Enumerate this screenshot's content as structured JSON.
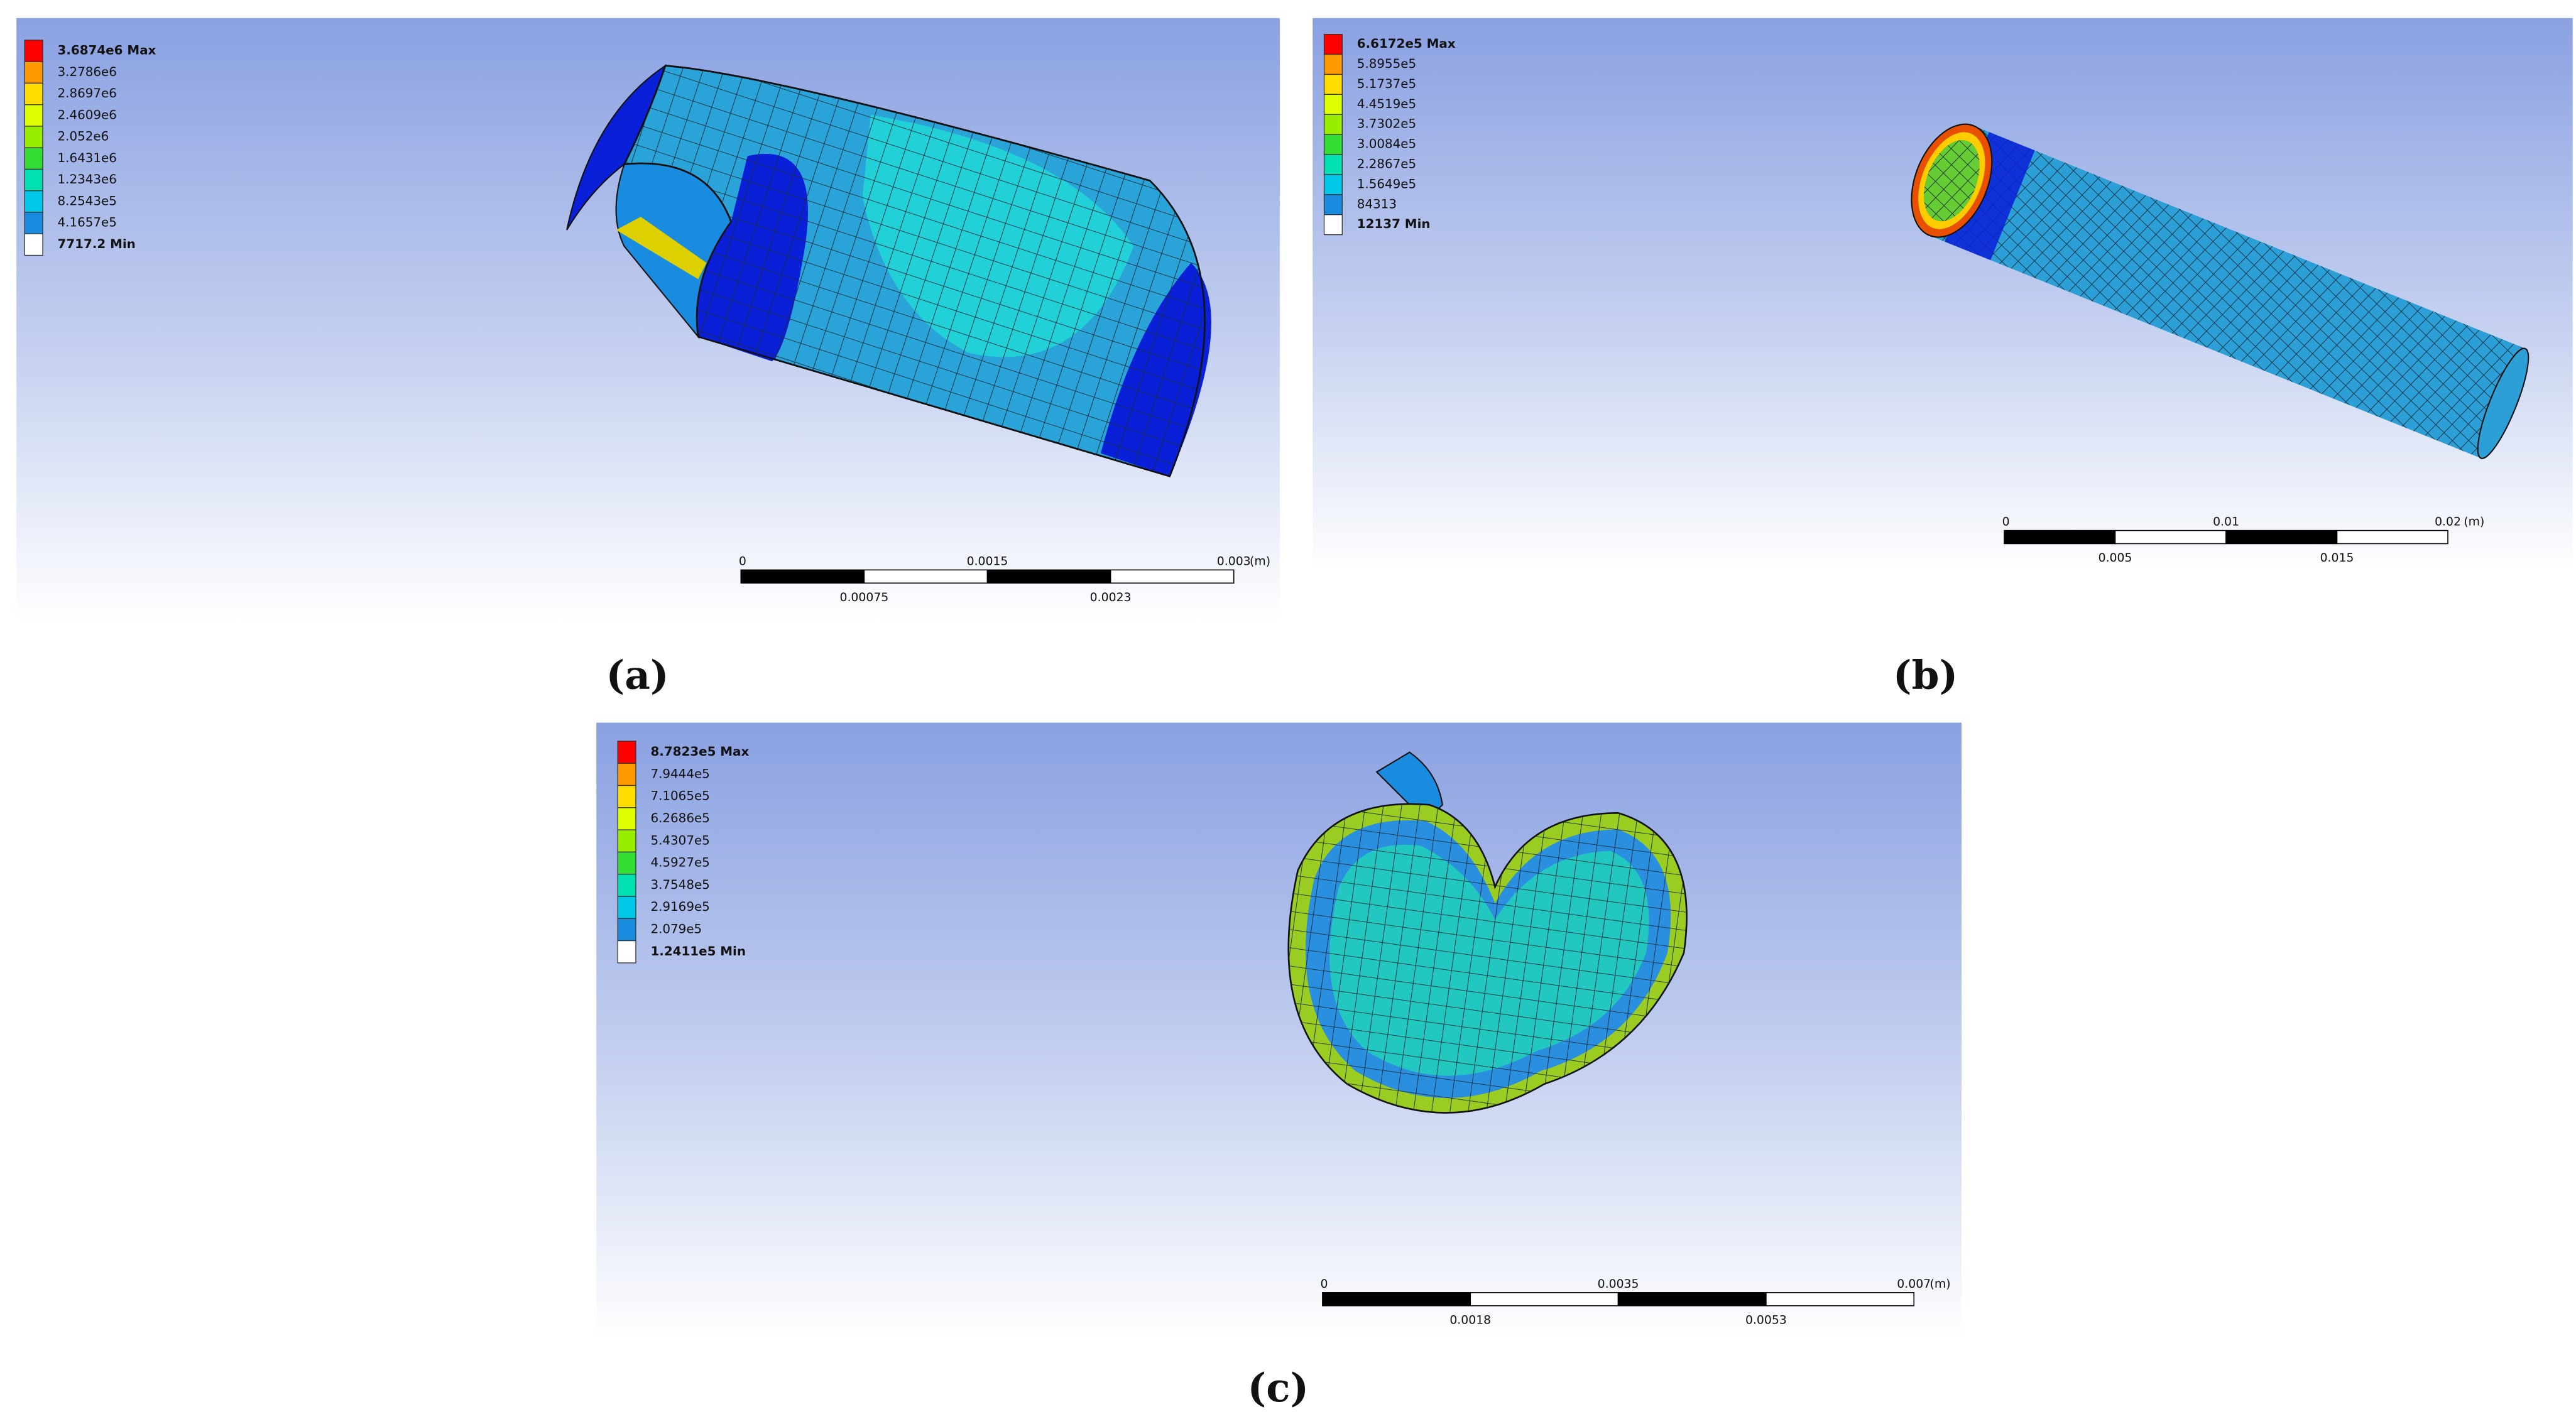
{
  "panels": [
    {
      "label": "(a)",
      "legend": {
        "labels": [
          "3.6874e6 Max",
          "3.2786e6",
          "2.8697e6",
          "2.4609e6",
          "2.052e6",
          "1.6431e6",
          "1.2343e6",
          "8.2543e5",
          "4.1657e5",
          "7717.2 Min"
        ],
        "colors": [
          "#ff0000",
          "#ff9900",
          "#ffdd00",
          "#ddff00",
          "#99ee00",
          "#33dd33",
          "#00e0b0",
          "#00c8e8",
          "#1a8ce0",
          "#0000ff"
        ]
      },
      "scale_bar": {
        "top": [
          "0",
          "0.0015",
          "0.003"
        ],
        "unit": "(m)",
        "bottom": [
          "0.00075",
          "0.0023"
        ]
      }
    },
    {
      "label": "(b)",
      "legend": {
        "labels": [
          "6.6172e5 Max",
          "5.8955e5",
          "5.1737e5",
          "4.4519e5",
          "3.7302e5",
          "3.0084e5",
          "2.2867e5",
          "1.5649e5",
          "84313",
          "12137 Min"
        ],
        "colors": [
          "#ff0000",
          "#ff9900",
          "#ffdd00",
          "#ddff00",
          "#99ee00",
          "#33dd33",
          "#00e0b0",
          "#00c8e8",
          "#1a8ce0",
          "#0000ff"
        ]
      },
      "scale_bar": {
        "top": [
          "0",
          "0.01",
          "0.02"
        ],
        "unit": "(m)",
        "bottom": [
          "0.005",
          "0.015"
        ]
      }
    },
    {
      "label": "(c)",
      "legend": {
        "labels": [
          "8.7823e5 Max",
          "7.9444e5",
          "7.1065e5",
          "6.2686e5",
          "5.4307e5",
          "4.5927e5",
          "3.7548e5",
          "2.9169e5",
          "2.079e5",
          "1.2411e5 Min"
        ],
        "colors": [
          "#ff0000",
          "#ff9900",
          "#ffdd00",
          "#ddff00",
          "#99ee00",
          "#33dd33",
          "#00e0b0",
          "#00c8e8",
          "#1a8ce0",
          "#0000ff"
        ]
      },
      "scale_bar": {
        "top": [
          "0",
          "0.0035",
          "0.007"
        ],
        "unit": "(m)",
        "bottom": [
          "0.0018",
          "0.0053"
        ]
      }
    }
  ]
}
